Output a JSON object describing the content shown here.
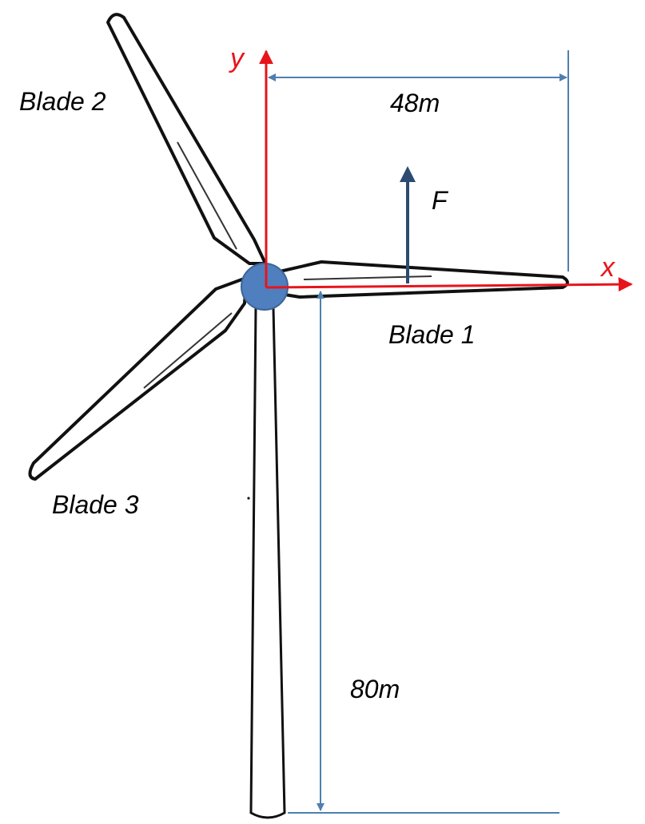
{
  "colors": {
    "axis": "#e8141b",
    "dimension": "#4f7fb0",
    "force": "#2c4a72",
    "hub": "#4f7fbf",
    "hub_stroke": "#3d6597",
    "outline": "#111111"
  },
  "axes": {
    "x_label": "x",
    "y_label": "y"
  },
  "force": {
    "label": "F"
  },
  "blades": {
    "blade_1": "Blade 1",
    "blade_2": "Blade 2",
    "blade_3": "Blade 3"
  },
  "dimensions": {
    "blade_length": "48m",
    "tower_height": "80m"
  }
}
